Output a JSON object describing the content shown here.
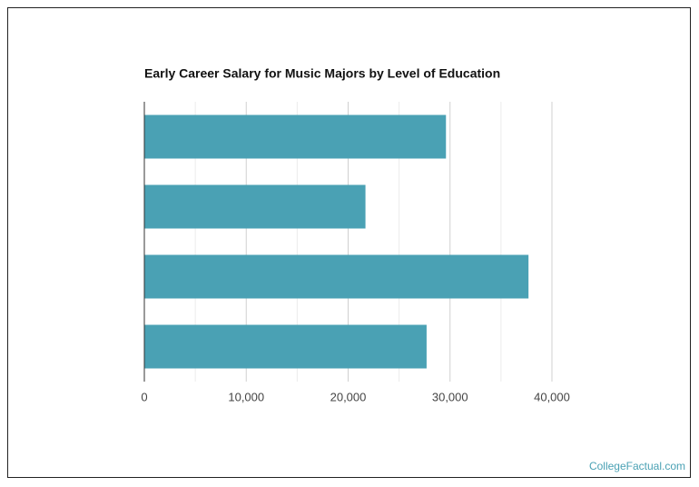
{
  "chart_data": {
    "type": "hbar",
    "title": "Early Career Salary for Music Majors by Level of Education",
    "categories": [
      null,
      null,
      null,
      null
    ],
    "values": [
      29600,
      21700,
      37700,
      27700
    ],
    "color": "#4aa1b4",
    "xlim": [
      0,
      40000
    ],
    "xticks": [
      0,
      {
        "value": 10000,
        "label": "10,000"
      },
      {
        "value": 20000,
        "label": "20,000"
      },
      {
        "value": 30000,
        "label": "30,000"
      },
      {
        "value": 40000,
        "label": "40,000"
      }
    ],
    "minor_xticks": [
      5000,
      15000,
      25000,
      35000
    ],
    "grid": true
  },
  "footer": "CollegeFactual.com"
}
